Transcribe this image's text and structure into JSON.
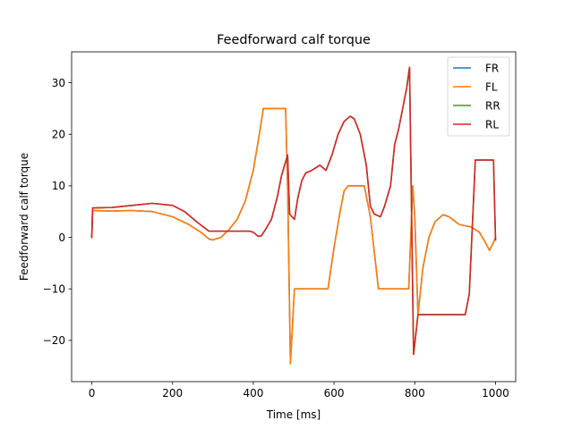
{
  "chart_data": {
    "type": "line",
    "title": "Feedforward calf torque",
    "xlabel": "Time [ms]",
    "ylabel": "Feedforward calf torque",
    "xlim": [
      -50,
      1050
    ],
    "ylim": [
      -28,
      36
    ],
    "xticks": [
      0,
      200,
      400,
      600,
      800,
      1000
    ],
    "yticks": [
      -20,
      -10,
      0,
      10,
      20,
      30
    ],
    "grid": false,
    "legend_position": "top-right",
    "series": [
      {
        "name": "FR",
        "color": "#1f77b4",
        "points": [
          [
            0,
            0
          ],
          [
            2,
            5.2
          ],
          [
            50,
            5.1
          ],
          [
            100,
            5.2
          ],
          [
            150,
            5.0
          ],
          [
            200,
            4.0
          ],
          [
            240,
            2.5
          ],
          [
            270,
            1.0
          ],
          [
            290,
            -0.3
          ],
          [
            300,
            -0.5
          ],
          [
            320,
            0.0
          ],
          [
            340,
            1.5
          ],
          [
            360,
            3.5
          ],
          [
            380,
            7.0
          ],
          [
            400,
            13.0
          ],
          [
            415,
            20.0
          ],
          [
            425,
            25
          ],
          [
            480,
            25
          ],
          [
            485,
            10
          ],
          [
            492,
            -24.5
          ],
          [
            502,
            -10
          ],
          [
            585,
            -10
          ],
          [
            600,
            -2
          ],
          [
            615,
            5.0
          ],
          [
            625,
            9.0
          ],
          [
            635,
            10
          ],
          [
            675,
            10
          ],
          [
            690,
            4
          ],
          [
            710,
            -10
          ],
          [
            785,
            -10
          ],
          [
            795,
            10
          ],
          [
            800,
            4
          ],
          [
            808,
            -15
          ],
          [
            820,
            -6
          ],
          [
            835,
            0
          ],
          [
            850,
            3
          ],
          [
            870,
            4.4
          ],
          [
            885,
            4.0
          ],
          [
            910,
            2.5
          ],
          [
            940,
            2.0
          ],
          [
            960,
            1.0
          ],
          [
            975,
            -1.0
          ],
          [
            985,
            -2.5
          ],
          [
            995,
            -1.0
          ],
          [
            1000,
            0
          ]
        ]
      },
      {
        "name": "FL",
        "color": "#ff7f0e",
        "points": [
          [
            0,
            0
          ],
          [
            2,
            5.2
          ],
          [
            50,
            5.1
          ],
          [
            100,
            5.2
          ],
          [
            150,
            5.0
          ],
          [
            200,
            4.0
          ],
          [
            240,
            2.5
          ],
          [
            270,
            1.0
          ],
          [
            290,
            -0.3
          ],
          [
            300,
            -0.5
          ],
          [
            320,
            0.0
          ],
          [
            340,
            1.5
          ],
          [
            360,
            3.5
          ],
          [
            380,
            7.0
          ],
          [
            400,
            13.0
          ],
          [
            415,
            20.0
          ],
          [
            425,
            25
          ],
          [
            480,
            25
          ],
          [
            485,
            10
          ],
          [
            492,
            -24.5
          ],
          [
            502,
            -10
          ],
          [
            585,
            -10
          ],
          [
            600,
            -2
          ],
          [
            615,
            5.0
          ],
          [
            625,
            9.0
          ],
          [
            635,
            10
          ],
          [
            675,
            10
          ],
          [
            690,
            4
          ],
          [
            710,
            -10
          ],
          [
            785,
            -10
          ],
          [
            795,
            10
          ],
          [
            800,
            4
          ],
          [
            808,
            -15
          ],
          [
            820,
            -6
          ],
          [
            835,
            0
          ],
          [
            850,
            3
          ],
          [
            870,
            4.4
          ],
          [
            885,
            4.0
          ],
          [
            910,
            2.5
          ],
          [
            940,
            2.0
          ],
          [
            960,
            1.0
          ],
          [
            975,
            -1.0
          ],
          [
            985,
            -2.5
          ],
          [
            995,
            -1.0
          ],
          [
            1000,
            0
          ]
        ]
      },
      {
        "name": "RR",
        "color": "#2ca02c",
        "points": [
          [
            0,
            0
          ],
          [
            2,
            5.7
          ],
          [
            50,
            5.8
          ],
          [
            100,
            6.2
          ],
          [
            150,
            6.6
          ],
          [
            200,
            6.2
          ],
          [
            230,
            5.0
          ],
          [
            260,
            3.0
          ],
          [
            290,
            1.2
          ],
          [
            300,
            1.2
          ],
          [
            350,
            1.2
          ],
          [
            390,
            1.2
          ],
          [
            400,
            1.0
          ],
          [
            412,
            0.2
          ],
          [
            420,
            0.3
          ],
          [
            430,
            1.5
          ],
          [
            445,
            3.5
          ],
          [
            460,
            8.0
          ],
          [
            470,
            12.0
          ],
          [
            485,
            16.0
          ],
          [
            490,
            4.5
          ],
          [
            502,
            3.5
          ],
          [
            510,
            7.5
          ],
          [
            520,
            11.0
          ],
          [
            530,
            12.5
          ],
          [
            545,
            13.0
          ],
          [
            555,
            13.5
          ],
          [
            565,
            14.0
          ],
          [
            580,
            13.0
          ],
          [
            595,
            16.0
          ],
          [
            610,
            20.0
          ],
          [
            625,
            22.5
          ],
          [
            640,
            23.5
          ],
          [
            650,
            23.0
          ],
          [
            665,
            20.0
          ],
          [
            680,
            14.0
          ],
          [
            690,
            6.0
          ],
          [
            700,
            4.5
          ],
          [
            715,
            4.0
          ],
          [
            725,
            6.0
          ],
          [
            740,
            10.0
          ],
          [
            750,
            18.0
          ],
          [
            760,
            21.0
          ],
          [
            770,
            25.0
          ],
          [
            780,
            29.0
          ],
          [
            787,
            33.0
          ],
          [
            797,
            -22.7
          ],
          [
            808,
            -15
          ],
          [
            925,
            -15
          ],
          [
            935,
            -11
          ],
          [
            950,
            15
          ],
          [
            995,
            15
          ],
          [
            1000,
            -0.5
          ]
        ]
      },
      {
        "name": "RL",
        "color": "#d62728",
        "points": [
          [
            0,
            0
          ],
          [
            2,
            5.7
          ],
          [
            50,
            5.8
          ],
          [
            100,
            6.2
          ],
          [
            150,
            6.6
          ],
          [
            200,
            6.2
          ],
          [
            230,
            5.0
          ],
          [
            260,
            3.0
          ],
          [
            290,
            1.2
          ],
          [
            300,
            1.2
          ],
          [
            350,
            1.2
          ],
          [
            390,
            1.2
          ],
          [
            400,
            1.0
          ],
          [
            412,
            0.2
          ],
          [
            420,
            0.3
          ],
          [
            430,
            1.5
          ],
          [
            445,
            3.5
          ],
          [
            460,
            8.0
          ],
          [
            470,
            12.0
          ],
          [
            485,
            16.0
          ],
          [
            490,
            4.5
          ],
          [
            502,
            3.5
          ],
          [
            510,
            7.5
          ],
          [
            520,
            11.0
          ],
          [
            530,
            12.5
          ],
          [
            545,
            13.0
          ],
          [
            555,
            13.5
          ],
          [
            565,
            14.0
          ],
          [
            580,
            13.0
          ],
          [
            595,
            16.0
          ],
          [
            610,
            20.0
          ],
          [
            625,
            22.5
          ],
          [
            640,
            23.5
          ],
          [
            650,
            23.0
          ],
          [
            665,
            20.0
          ],
          [
            680,
            14.0
          ],
          [
            690,
            6.0
          ],
          [
            700,
            4.5
          ],
          [
            715,
            4.0
          ],
          [
            725,
            6.0
          ],
          [
            740,
            10.0
          ],
          [
            750,
            18.0
          ],
          [
            760,
            21.0
          ],
          [
            770,
            25.0
          ],
          [
            780,
            29.0
          ],
          [
            787,
            33.0
          ],
          [
            797,
            -22.7
          ],
          [
            808,
            -15
          ],
          [
            925,
            -15
          ],
          [
            935,
            -11
          ],
          [
            950,
            15
          ],
          [
            995,
            15
          ],
          [
            1000,
            -0.5
          ]
        ]
      }
    ]
  }
}
